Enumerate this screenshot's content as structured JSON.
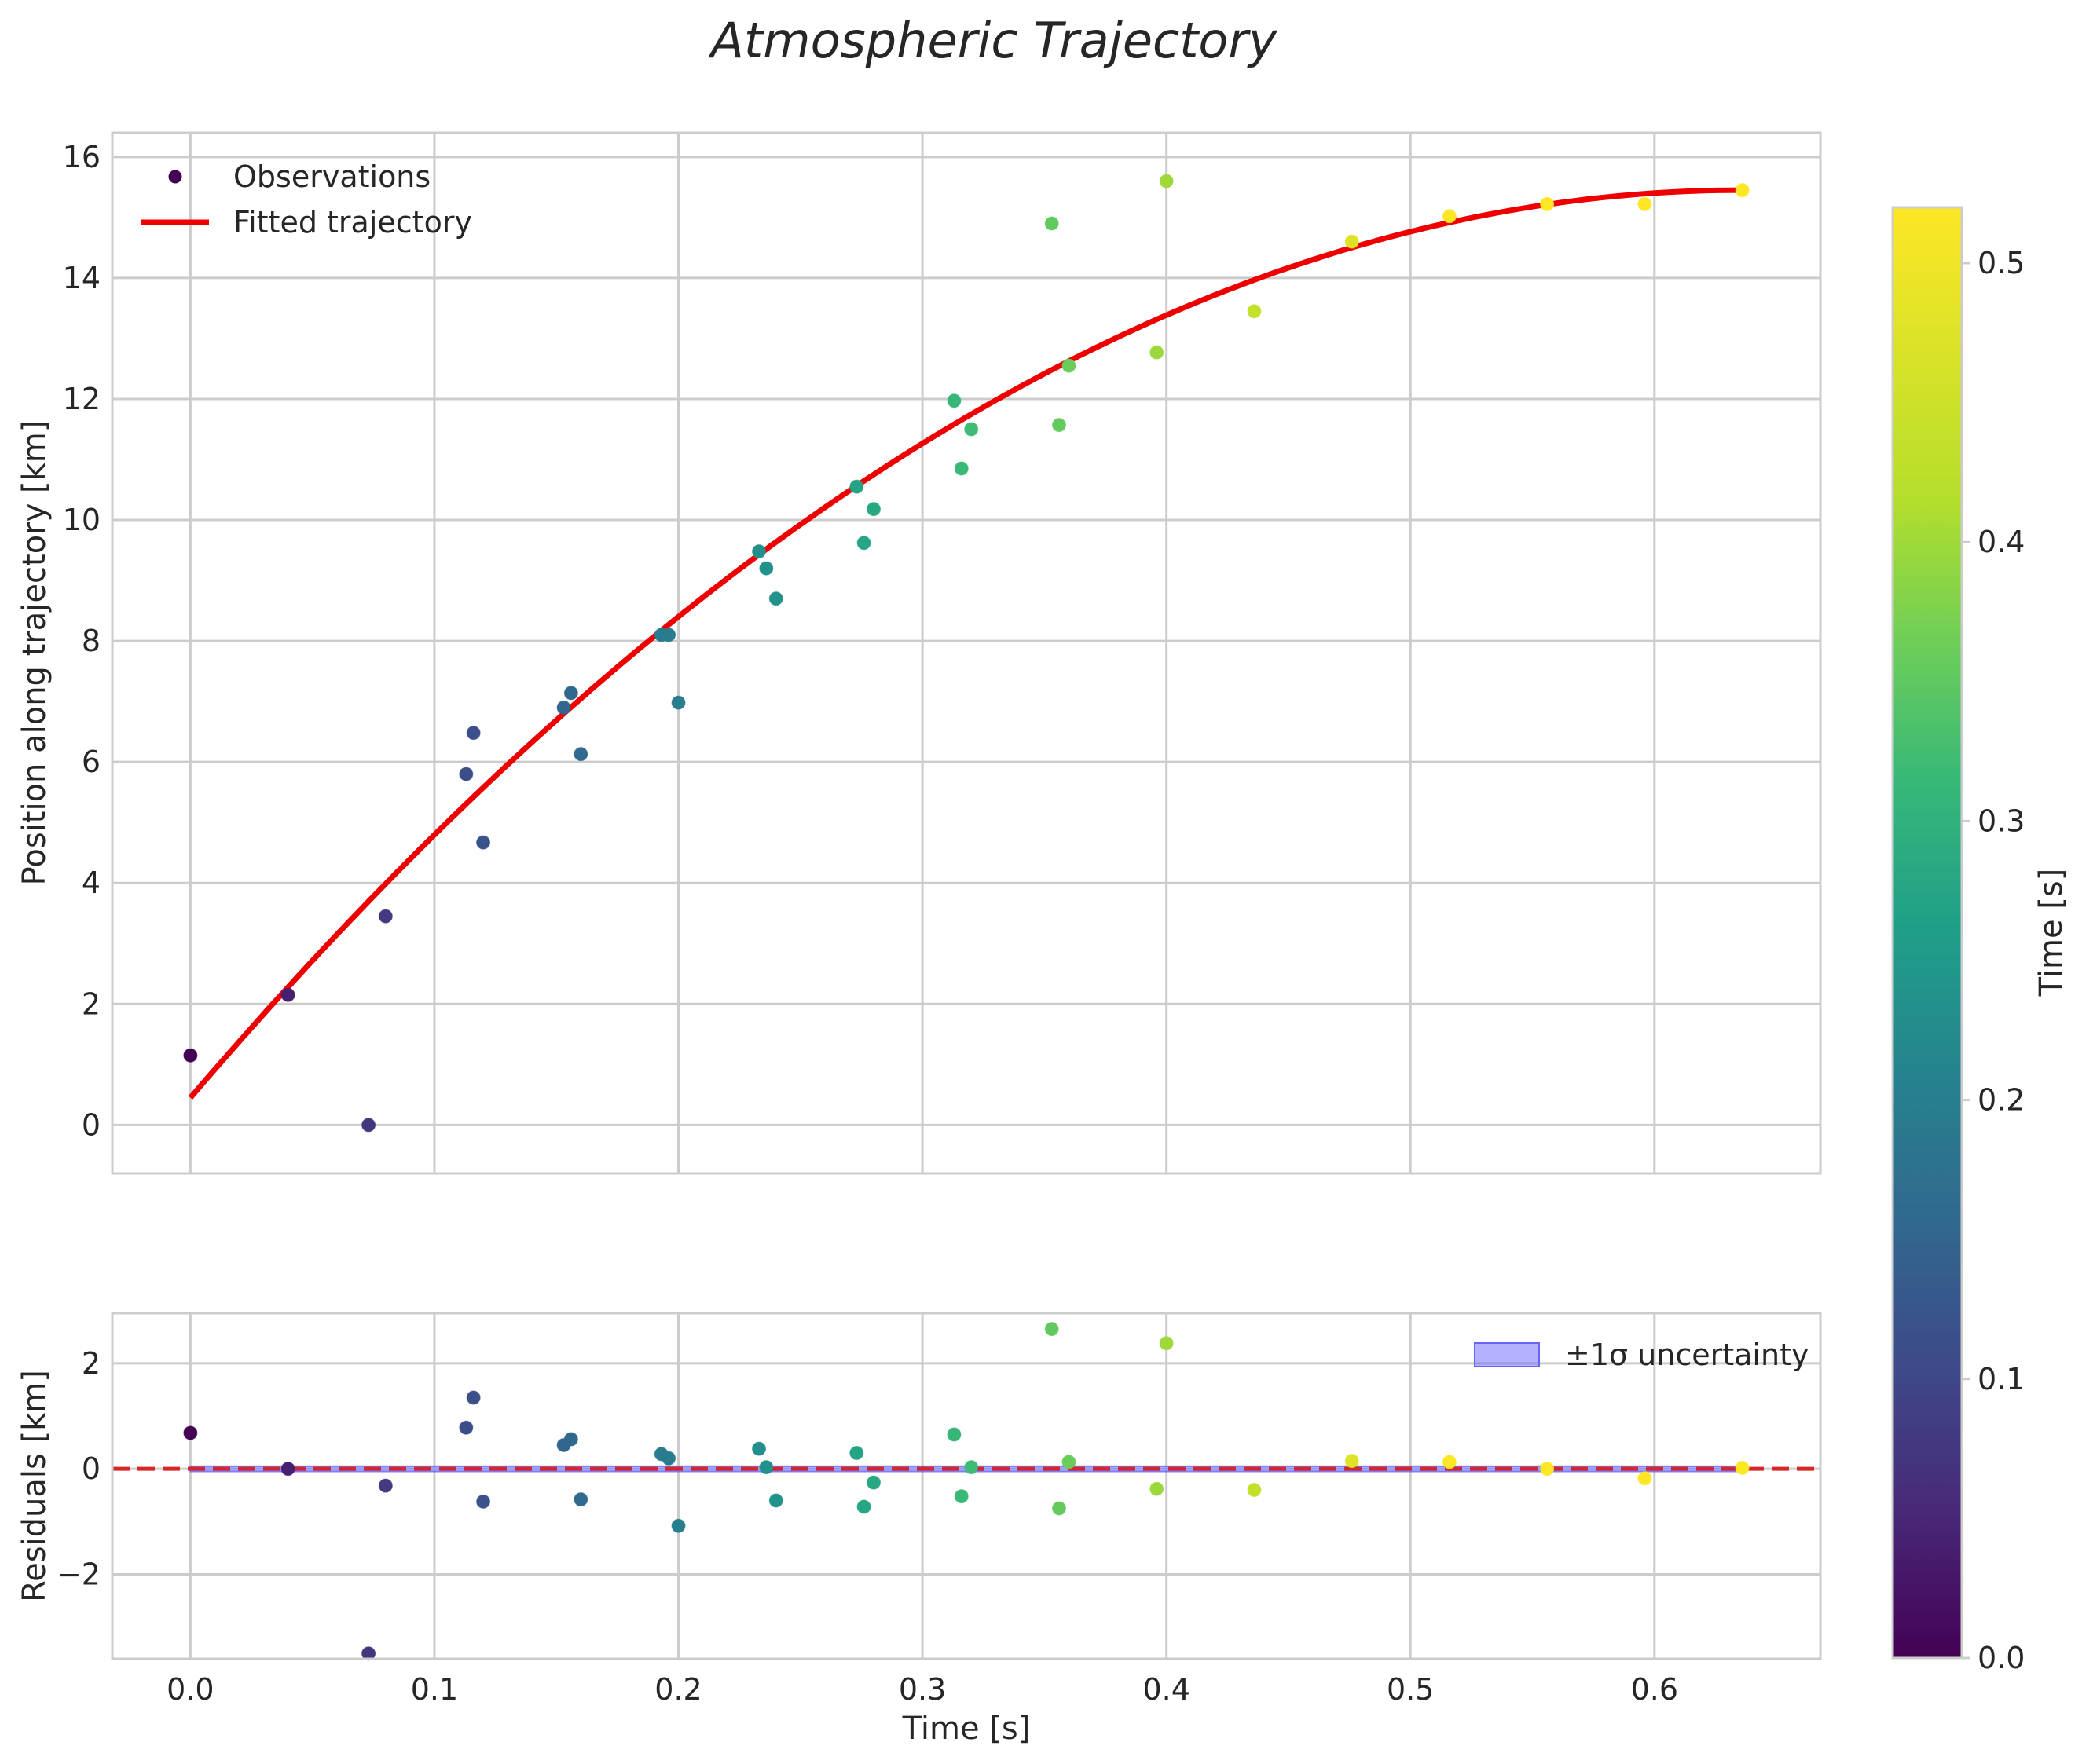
{
  "chart_data": {
    "type": "scatter",
    "title": "Atmospheric Trajectory",
    "colormap": "viridis",
    "x": [
      0.0,
      0.04,
      0.073,
      0.08,
      0.113,
      0.116,
      0.12,
      0.153,
      0.156,
      0.16,
      0.193,
      0.196,
      0.2,
      0.233,
      0.236,
      0.24,
      0.273,
      0.276,
      0.28,
      0.313,
      0.316,
      0.32,
      0.353,
      0.356,
      0.36,
      0.396,
      0.4,
      0.436,
      0.476,
      0.516,
      0.556,
      0.596,
      0.636
    ],
    "y": [
      1.15,
      2.15,
      0.0,
      3.45,
      5.8,
      6.48,
      4.67,
      6.9,
      7.14,
      6.13,
      8.1,
      8.1,
      6.98,
      9.48,
      9.2,
      8.7,
      10.55,
      9.62,
      10.18,
      11.97,
      10.85,
      11.5,
      14.9,
      11.57,
      12.55,
      12.77,
      15.6,
      13.45,
      14.6,
      15.02,
      15.22,
      15.22,
      15.45
    ],
    "residuals": [
      0.68,
      0.0,
      -3.5,
      -0.32,
      0.78,
      1.35,
      -0.62,
      0.45,
      0.56,
      -0.58,
      0.28,
      0.2,
      -1.08,
      0.38,
      0.03,
      -0.6,
      0.3,
      -0.72,
      -0.26,
      0.65,
      -0.52,
      0.03,
      2.65,
      -0.75,
      0.13,
      -0.38,
      2.38,
      -0.4,
      0.15,
      0.13,
      0.0,
      -0.18,
      0.02
    ],
    "fit": {
      "t": [
        0.0,
        0.636
      ],
      "a": 0.45,
      "b": 47.17,
      "c": -37.08
    },
    "sigma": 0.05,
    "top_panel": {
      "ylabel": "Position along trajectory [km]",
      "ylim": [
        -0.8,
        16.4
      ],
      "yticks": [
        "0",
        "2",
        "4",
        "6",
        "8",
        "10",
        "12",
        "14",
        "16"
      ],
      "legend": {
        "observations": "Observations",
        "fit": "Fitted trajectory",
        "position": "upper-left"
      }
    },
    "bottom_panel": {
      "ylabel": "Residuals [km]",
      "ylim": [
        -3.6,
        2.95
      ],
      "yticks": [
        "2",
        "0",
        "−2"
      ],
      "legend": {
        "band": "±1σ uncertainty",
        "position": "upper-right"
      }
    },
    "xlabel": "Time [s]",
    "xlim": [
      -0.032,
      0.668
    ],
    "xticks": [
      "0.0",
      "0.1",
      "0.2",
      "0.3",
      "0.4",
      "0.5",
      "0.6"
    ],
    "colorbar": {
      "label": "Time [s]",
      "range": [
        0.0,
        0.52
      ],
      "ticks": [
        "0.0",
        "0.1",
        "0.2",
        "0.3",
        "0.4",
        "0.5"
      ]
    },
    "colors": {
      "fit": "#ee0000",
      "zero_line": "#d62728",
      "band": "#6666ff",
      "grid": "#cccccc"
    }
  }
}
